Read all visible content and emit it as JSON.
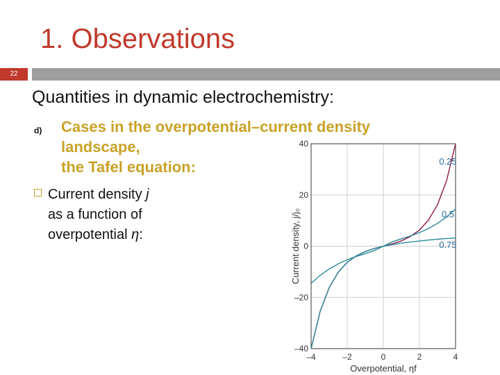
{
  "slide": {
    "title": "1. Observations",
    "page_number": "22",
    "heading": "Quantities in dynamic electrochemistry:",
    "item_d_marker": "d)",
    "item_d_line1": "Cases in the overpotential–current density",
    "item_d_line2": "landscape,",
    "item_d_line3": "the Tafel equation:",
    "bullet2_line1_pre": "Current density ",
    "bullet2_line1_var": "j",
    "bullet2_line2": "as a function of",
    "bullet2_line3_pre": "overpotential ",
    "bullet2_line3_var": "η",
    "bullet2_line3_post": ":"
  },
  "colors": {
    "accent_red": "#c0392b",
    "accent_gold": "#c9a227",
    "curve_025": "#8b1a4a",
    "curve_05_075": "#2a8a9a"
  },
  "chart_data": {
    "type": "line",
    "xlabel": "Overpotential, ηf",
    "ylabel": "Current density, j/j₀",
    "xlim": [
      -4,
      4
    ],
    "ylim": [
      -40,
      40
    ],
    "x_ticks": [
      -4,
      -2,
      0,
      2,
      4
    ],
    "x_tick_labels": [
      "–4",
      "–2",
      "0",
      "2",
      "4"
    ],
    "y_ticks": [
      -40,
      -20,
      0,
      20,
      40
    ],
    "y_tick_labels": [
      "–40",
      "–20",
      "0",
      "20",
      "40"
    ],
    "grid": true,
    "x": [
      -4,
      -3.5,
      -3,
      -2.5,
      -2,
      -1.5,
      -1,
      -0.5,
      0,
      0.5,
      1,
      1.5,
      2,
      2.5,
      3,
      3.5,
      4
    ],
    "series": [
      {
        "name": "0.25",
        "values": [
          -40.0,
          -25.5,
          -16.2,
          -10.2,
          -6.3,
          -3.8,
          -2.1,
          -0.9,
          0.0,
          0.9,
          2.1,
          3.8,
          6.3,
          10.2,
          16.2,
          25.5,
          40.0
        ]
      },
      {
        "name": "0.5",
        "values": [
          -14.5,
          -11.4,
          -8.9,
          -6.9,
          -5.3,
          -4.0,
          -2.9,
          -1.7,
          0.0,
          1.7,
          2.9,
          4.0,
          5.3,
          6.9,
          8.9,
          11.4,
          14.5
        ]
      },
      {
        "name": "0.75",
        "values": [
          -40.0,
          -25.5,
          -16.2,
          -10.2,
          -6.3,
          -3.8,
          -2.1,
          -0.9,
          0.0,
          0.6,
          1.2,
          1.6,
          2.0,
          2.4,
          2.7,
          3.0,
          3.2
        ]
      }
    ]
  }
}
